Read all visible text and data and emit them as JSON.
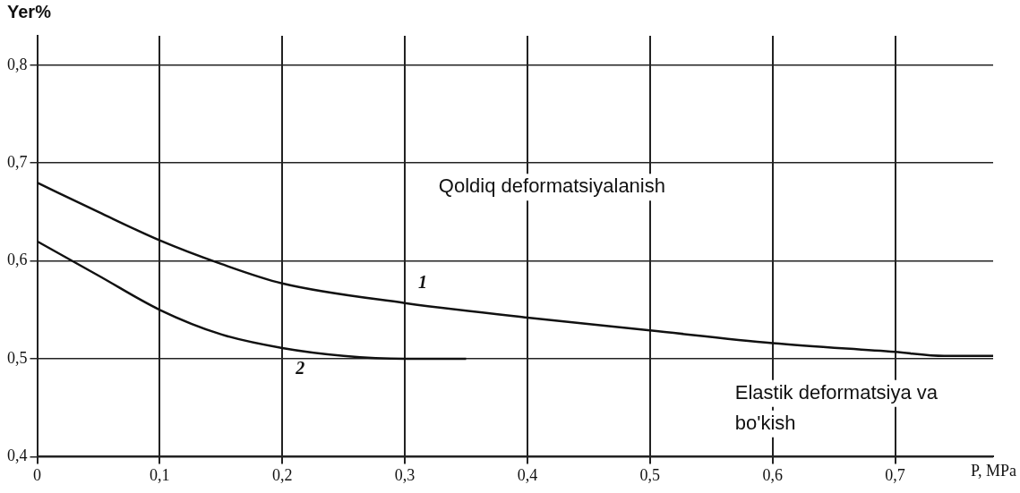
{
  "chart_data": {
    "type": "line",
    "xlabel": "P, MPa",
    "ylabel": "Yer%",
    "xlim": [
      0,
      0.78
    ],
    "ylim": [
      0.4,
      0.83
    ],
    "xticks": [
      0,
      {
        "value": 0.1,
        "label": "0,1"
      },
      {
        "value": 0.2,
        "label": "0,2"
      },
      {
        "value": 0.3,
        "label": "0,3"
      },
      {
        "value": 0.4,
        "label": "0,4"
      },
      {
        "value": 0.5,
        "label": "0,5"
      },
      {
        "value": 0.6,
        "label": "0,6"
      },
      {
        "value": 0.7,
        "label": "0,7"
      }
    ],
    "yticks": [
      {
        "value": 0.4,
        "label": "0,4"
      },
      {
        "value": 0.5,
        "label": "0,5"
      },
      {
        "value": 0.6,
        "label": "0,6"
      },
      {
        "value": 0.7,
        "label": "0,7"
      },
      {
        "value": 0.8,
        "label": "0,8"
      }
    ],
    "grid": true,
    "legend": false,
    "marker": "none",
    "line_style": "solid",
    "series": [
      {
        "name": "1",
        "color": "#111111",
        "x": [
          0,
          0.05,
          0.1,
          0.15,
          0.2,
          0.3,
          0.4,
          0.5,
          0.6,
          0.7,
          0.74,
          0.78
        ],
        "values": [
          0.68,
          0.65,
          0.621,
          0.597,
          0.577,
          0.557,
          0.542,
          0.529,
          0.516,
          0.507,
          0.503,
          0.503
        ]
      },
      {
        "name": "2",
        "color": "#111111",
        "x": [
          0,
          0.05,
          0.1,
          0.15,
          0.2,
          0.25,
          0.3,
          0.35
        ],
        "values": [
          0.62,
          0.585,
          0.55,
          0.525,
          0.511,
          0.503,
          0.5,
          0.5
        ]
      }
    ],
    "annotations": [
      "Qoldiq deformatsiyalanish",
      "Elastik deformatsiya va bo'kish"
    ]
  }
}
